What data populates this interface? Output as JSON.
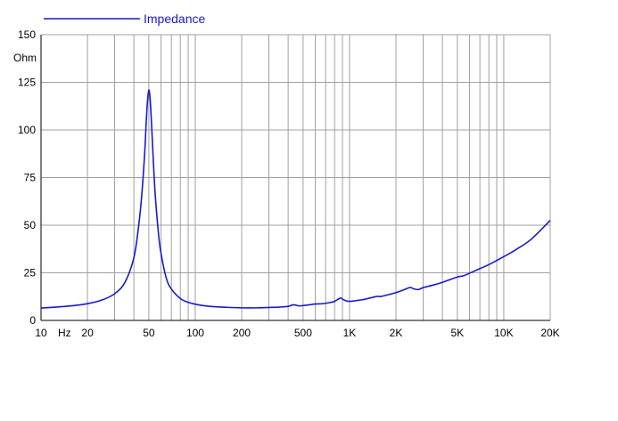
{
  "chart_data": {
    "type": "line",
    "title": "",
    "xlabel": "Hz",
    "ylabel": "Ohm",
    "x_scale": "log",
    "xlim": [
      10,
      20000
    ],
    "ylim": [
      0,
      150
    ],
    "y_ticks": [
      0,
      25,
      50,
      75,
      100,
      125,
      150
    ],
    "x_tick_labels": [
      {
        "v": 10,
        "t": "10"
      },
      {
        "v": 20,
        "t": "20"
      },
      {
        "v": 50,
        "t": "50"
      },
      {
        "v": 100,
        "t": "100"
      },
      {
        "v": 200,
        "t": "200"
      },
      {
        "v": 500,
        "t": "500"
      },
      {
        "v": 1000,
        "t": "1K"
      },
      {
        "v": 2000,
        "t": "2K"
      },
      {
        "v": 5000,
        "t": "5K"
      },
      {
        "v": 10000,
        "t": "10K"
      },
      {
        "v": 20000,
        "t": "20K"
      }
    ],
    "grid": true,
    "legend": {
      "position": "top-left"
    },
    "colors": {
      "series": "#1a1acc",
      "grid": "#a0a0a0",
      "axis": "#000000"
    },
    "series": [
      {
        "name": "Impedance",
        "x": [
          10,
          15,
          20,
          25,
          30,
          35,
          40,
          43,
          45,
          47,
          48,
          49,
          50,
          51,
          52,
          53,
          55,
          58,
          60,
          65,
          70,
          80,
          90,
          100,
          120,
          150,
          200,
          250,
          300,
          350,
          400,
          430,
          450,
          470,
          500,
          550,
          600,
          650,
          700,
          750,
          800,
          850,
          880,
          900,
          950,
          1000,
          1100,
          1200,
          1300,
          1400,
          1500,
          1600,
          1800,
          2000,
          2200,
          2400,
          2500,
          2600,
          2800,
          3000,
          3500,
          4000,
          4500,
          5000,
          5500,
          6000,
          7000,
          8000,
          10000,
          12000,
          15000,
          20000
        ],
        "y": [
          6.5,
          7.5,
          8.8,
          10.8,
          14.0,
          20.0,
          33.0,
          50.0,
          66.0,
          88.0,
          103.0,
          115.0,
          121.0,
          116.0,
          104.0,
          90.0,
          66.0,
          44.0,
          35.0,
          22.0,
          16.5,
          11.5,
          9.5,
          8.5,
          7.5,
          7.0,
          6.6,
          6.6,
          6.8,
          7.0,
          7.4,
          8.2,
          8.0,
          7.6,
          7.8,
          8.2,
          8.6,
          8.7,
          9.0,
          9.4,
          10.0,
          11.3,
          11.8,
          11.2,
          10.3,
          10.0,
          10.4,
          10.8,
          11.4,
          12.0,
          12.6,
          12.6,
          13.6,
          14.6,
          15.8,
          17.0,
          17.3,
          16.6,
          16.2,
          17.2,
          18.6,
          20.0,
          21.5,
          22.8,
          23.5,
          24.8,
          27.2,
          29.3,
          33.5,
          37.2,
          42.5,
          52.5
        ]
      }
    ]
  }
}
